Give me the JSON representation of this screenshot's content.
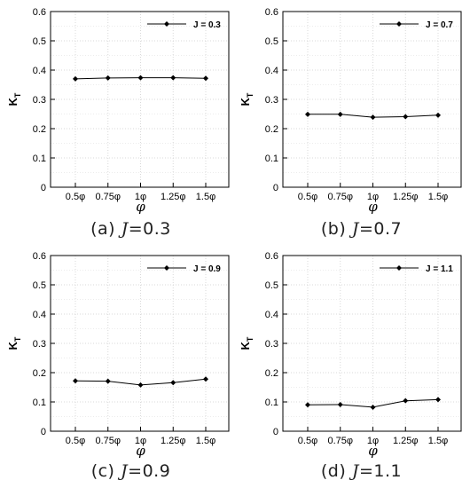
{
  "figure": {
    "captions": [
      {
        "label": "(a)",
        "var": "J",
        "value": "=0.3"
      },
      {
        "label": "(b)",
        "var": "J",
        "value": "=0.7"
      },
      {
        "label": "(c)",
        "var": "J",
        "value": "=0.9"
      },
      {
        "label": "(d)",
        "var": "J",
        "value": "=1.1"
      }
    ]
  },
  "chart_data": [
    {
      "type": "line",
      "panel": "(a)",
      "categories": [
        "0.5φ",
        "0.75φ",
        "1φ",
        "1.25φ",
        "1.5φ"
      ],
      "series": [
        {
          "name": "J = 0.3",
          "values": [
            0.37,
            0.373,
            0.374,
            0.374,
            0.372
          ]
        }
      ],
      "xlabel": "φ",
      "ylabel": "K_T",
      "ylim": [
        0,
        0.6
      ],
      "yticks": [
        "0",
        "0.1",
        "0.2",
        "0.3",
        "0.4",
        "0.5",
        "0.6"
      ],
      "grid": true,
      "legend": "top-right",
      "marker": "diamond",
      "color": "#000000"
    },
    {
      "type": "line",
      "panel": "(b)",
      "categories": [
        "0.5φ",
        "0.75φ",
        "1φ",
        "1.25φ",
        "1.5φ"
      ],
      "series": [
        {
          "name": "J = 0.7",
          "values": [
            0.249,
            0.249,
            0.239,
            0.241,
            0.246
          ]
        }
      ],
      "xlabel": "φ",
      "ylabel": "K_T",
      "ylim": [
        0,
        0.6
      ],
      "yticks": [
        "0",
        "0.1",
        "0.2",
        "0.3",
        "0.4",
        "0.5",
        "0.6"
      ],
      "grid": true,
      "legend": "top-right",
      "marker": "diamond",
      "color": "#000000"
    },
    {
      "type": "line",
      "panel": "(c)",
      "categories": [
        "0.5φ",
        "0.75φ",
        "1φ",
        "1.25φ",
        "1.5φ"
      ],
      "series": [
        {
          "name": "J = 0.9",
          "values": [
            0.172,
            0.171,
            0.158,
            0.166,
            0.178
          ]
        }
      ],
      "xlabel": "φ",
      "ylabel": "K_T",
      "ylim": [
        0,
        0.6
      ],
      "yticks": [
        "0",
        "0.1",
        "0.2",
        "0.3",
        "0.4",
        "0.5",
        "0.6"
      ],
      "grid": true,
      "legend": "top-right",
      "marker": "diamond",
      "color": "#000000"
    },
    {
      "type": "line",
      "panel": "(d)",
      "categories": [
        "0.5φ",
        "0.75φ",
        "1φ",
        "1.25φ",
        "1.5φ"
      ],
      "series": [
        {
          "name": "J = 1.1",
          "values": [
            0.09,
            0.091,
            0.082,
            0.104,
            0.108
          ]
        }
      ],
      "xlabel": "φ",
      "ylabel": "K_T",
      "ylim": [
        0,
        0.6
      ],
      "yticks": [
        "0",
        "0.1",
        "0.2",
        "0.3",
        "0.4",
        "0.5",
        "0.6"
      ],
      "grid": true,
      "legend": "top-right",
      "marker": "diamond",
      "color": "#000000"
    }
  ]
}
